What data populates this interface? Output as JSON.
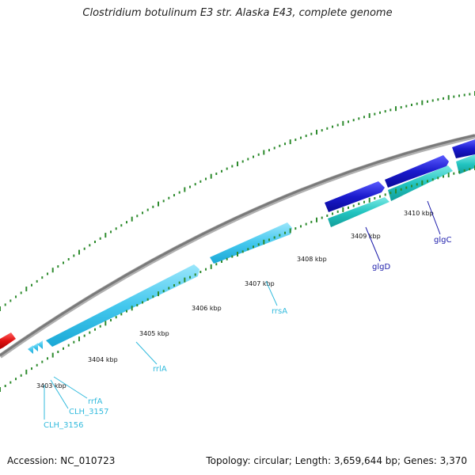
{
  "title": "Clostridium botulinum E3 str. Alaska E43, complete genome",
  "footer": {
    "accession": "Accession: NC_010723",
    "topology": "Topology: circular; Length: 3,659,644 bp; Genes: 3,370"
  },
  "ticks": [
    "3403 kbp",
    "3404 kbp",
    "3405 kbp",
    "3406 kbp",
    "3407 kbp",
    "3408 kbp",
    "3409 kbp",
    "3410 kbp"
  ],
  "genes": {
    "rrfA": "rrfA",
    "CLH_3157": "CLH_3157",
    "CLH_3156": "CLH_3156",
    "rrlA": "rrlA",
    "rrsA": "rrsA",
    "glgD": "glgD",
    "glgC": "glgC"
  },
  "colors": {
    "rrna": "#44c8ee",
    "cds_forward": "#1a1acc",
    "cds_teal": "#22c4c0",
    "red_feature": "#e01010",
    "backbone": "#888888",
    "tick_major": "#1f7a1f",
    "tick_minor": "#2e8b2e",
    "label_rrna": "#33bbdd",
    "label_cds": "#1a1aaa"
  }
}
